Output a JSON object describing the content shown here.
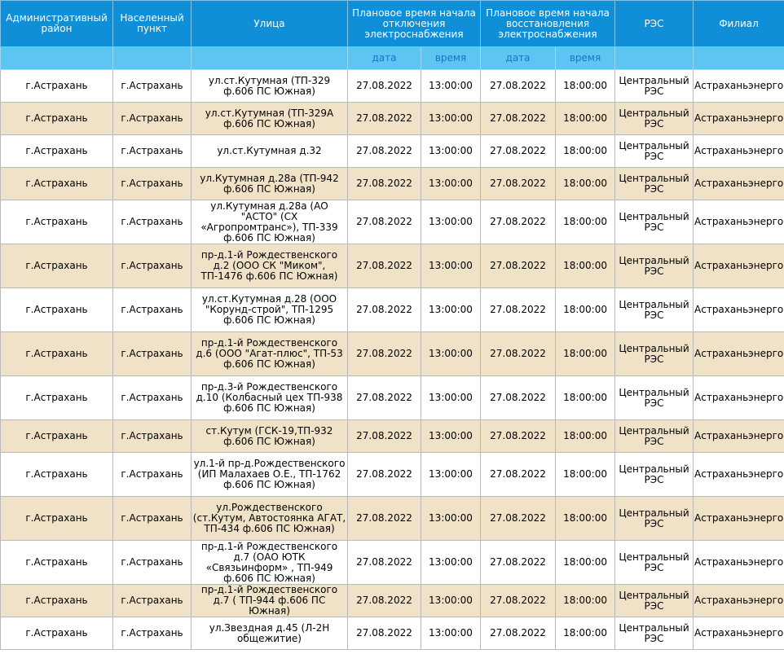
{
  "headers": {
    "district": "Административный район",
    "settlement": "Населенный пункт",
    "street": "Улица",
    "off_time": "Плановое время начала отключения электроснабжения",
    "on_time": "Плановое время начала восстановления электроснабжения",
    "res": "РЭС",
    "branch": "Филиал",
    "sub_date": "дата",
    "sub_time": "время"
  },
  "rows": [
    {
      "district": "г.Астрахань",
      "settlement": "г.Астрахань",
      "street": "ул.ст.Кутумная (ТП-329 ф.606 ПС Южная)",
      "off_date": "27.08.2022",
      "off_time": "13:00:00",
      "on_date": "27.08.2022",
      "on_time": "18:00:00",
      "res": "Центральный РЭС",
      "branch": "Астраханьэнерго"
    },
    {
      "district": "г.Астрахань",
      "settlement": "г.Астрахань",
      "street": "ул.ст.Кутумная (ТП-329А ф.606 ПС Южная)",
      "off_date": "27.08.2022",
      "off_time": "13:00:00",
      "on_date": "27.08.2022",
      "on_time": "18:00:00",
      "res": "Центральный РЭС",
      "branch": "Астраханьэнерго"
    },
    {
      "district": "г.Астрахань",
      "settlement": "г.Астрахань",
      "street": "ул.ст.Кутумная д.32",
      "off_date": "27.08.2022",
      "off_time": "13:00:00",
      "on_date": "27.08.2022",
      "on_time": "18:00:00",
      "res": "Центральный РЭС",
      "branch": "Астраханьэнерго"
    },
    {
      "district": "г.Астрахань",
      "settlement": "г.Астрахань",
      "street": "ул.Кутумная д.28а (ТП-942 ф.606 ПС Южная)",
      "off_date": "27.08.2022",
      "off_time": "13:00:00",
      "on_date": "27.08.2022",
      "on_time": "18:00:00",
      "res": "Центральный РЭС",
      "branch": "Астраханьэнерго"
    },
    {
      "district": "г.Астрахань",
      "settlement": "г.Астрахань",
      "street": "ул.Кутумная д.28а (АО \"АСТО\" (СХ «Агропромтранс»), ТП-339 ф.606 ПС Южная)",
      "off_date": "27.08.2022",
      "off_time": "13:00:00",
      "on_date": "27.08.2022",
      "on_time": "18:00:00",
      "res": "Центральный РЭС",
      "branch": "Астраханьэнерго"
    },
    {
      "district": "г.Астрахань",
      "settlement": "г.Астрахань",
      "street": "пр-д.1-й Рождественского д.2 (ООО СК \"Миком\", ТП-1476 ф.606 ПС Южная)",
      "off_date": "27.08.2022",
      "off_time": "13:00:00",
      "on_date": "27.08.2022",
      "on_time": "18:00:00",
      "res": "Центральный РЭС",
      "branch": "Астраханьэнерго"
    },
    {
      "district": "г.Астрахань",
      "settlement": "г.Астрахань",
      "street": "ул.ст.Кутумная д.28 (ООО \"Корунд-строй\", ТП-1295 ф.606 ПС Южная)",
      "off_date": "27.08.2022",
      "off_time": "13:00:00",
      "on_date": "27.08.2022",
      "on_time": "18:00:00",
      "res": "Центральный РЭС",
      "branch": "Астраханьэнерго"
    },
    {
      "district": "г.Астрахань",
      "settlement": "г.Астрахань",
      "street": "пр-д.1-й Рождественского д.6 (ООО \"Агат-плюс\", ТП-53 ф.606 ПС Южная)",
      "off_date": "27.08.2022",
      "off_time": "13:00:00",
      "on_date": "27.08.2022",
      "on_time": "18:00:00",
      "res": "Центральный РЭС",
      "branch": "Астраханьэнерго"
    },
    {
      "district": "г.Астрахань",
      "settlement": "г.Астрахань",
      "street": "пр-д.3-й Рождественского д.10 (Колбасный цех ТП-938 ф.606 ПС Южная)",
      "off_date": "27.08.2022",
      "off_time": "13:00:00",
      "on_date": "27.08.2022",
      "on_time": "18:00:00",
      "res": "Центральный РЭС",
      "branch": "Астраханьэнерго"
    },
    {
      "district": "г.Астрахань",
      "settlement": "г.Астрахань",
      "street": "ст.Кутум (ГСК-19,ТП-932 ф.606 ПС Южная)",
      "off_date": "27.08.2022",
      "off_time": "13:00:00",
      "on_date": "27.08.2022",
      "on_time": "18:00:00",
      "res": "Центральный РЭС",
      "branch": "Астраханьэнерго"
    },
    {
      "district": "г.Астрахань",
      "settlement": "г.Астрахань",
      "street": "ул.1-й пр-д.Рождественского (ИП Малахаев О.Е., ТП-1762 ф.606 ПС Южная)",
      "off_date": "27.08.2022",
      "off_time": "13:00:00",
      "on_date": "27.08.2022",
      "on_time": "18:00:00",
      "res": "Центральный РЭС",
      "branch": "Астраханьэнерго"
    },
    {
      "district": "г.Астрахань",
      "settlement": "г.Астрахань",
      "street": "ул.Рождественского (ст.Кутум, Автостоянка АГАТ, ТП-434 ф.606 ПС Южная)",
      "off_date": "27.08.2022",
      "off_time": "13:00:00",
      "on_date": "27.08.2022",
      "on_time": "18:00:00",
      "res": "Центральный РЭС",
      "branch": "Астраханьэнерго"
    },
    {
      "district": "г.Астрахань",
      "settlement": "г.Астрахань",
      "street": "пр-д.1-й Рождественского д.7 (ОАО ЮТК «Связьинформ» , ТП-949 ф.606 ПС Южная)",
      "off_date": "27.08.2022",
      "off_time": "13:00:00",
      "on_date": "27.08.2022",
      "on_time": "18:00:00",
      "res": "Центральный РЭС",
      "branch": "Астраханьэнерго"
    },
    {
      "district": "г.Астрахань",
      "settlement": "г.Астрахань",
      "street": "пр-д.1-й Рождественского д.7 ( ТП-944 ф.606 ПС Южная)",
      "off_date": "27.08.2022",
      "off_time": "13:00:00",
      "on_date": "27.08.2022",
      "on_time": "18:00:00",
      "res": "Центральный РЭС",
      "branch": "Астраханьэнерго"
    },
    {
      "district": "г.Астрахань",
      "settlement": "г.Астрахань",
      "street": "ул.Звездная д.45 (Л-2Н общежитие)",
      "off_date": "27.08.2022",
      "off_time": "13:00:00",
      "on_date": "27.08.2022",
      "on_time": "18:00:00",
      "res": "Центральный РЭС",
      "branch": "Астраханьэнерго"
    }
  ]
}
